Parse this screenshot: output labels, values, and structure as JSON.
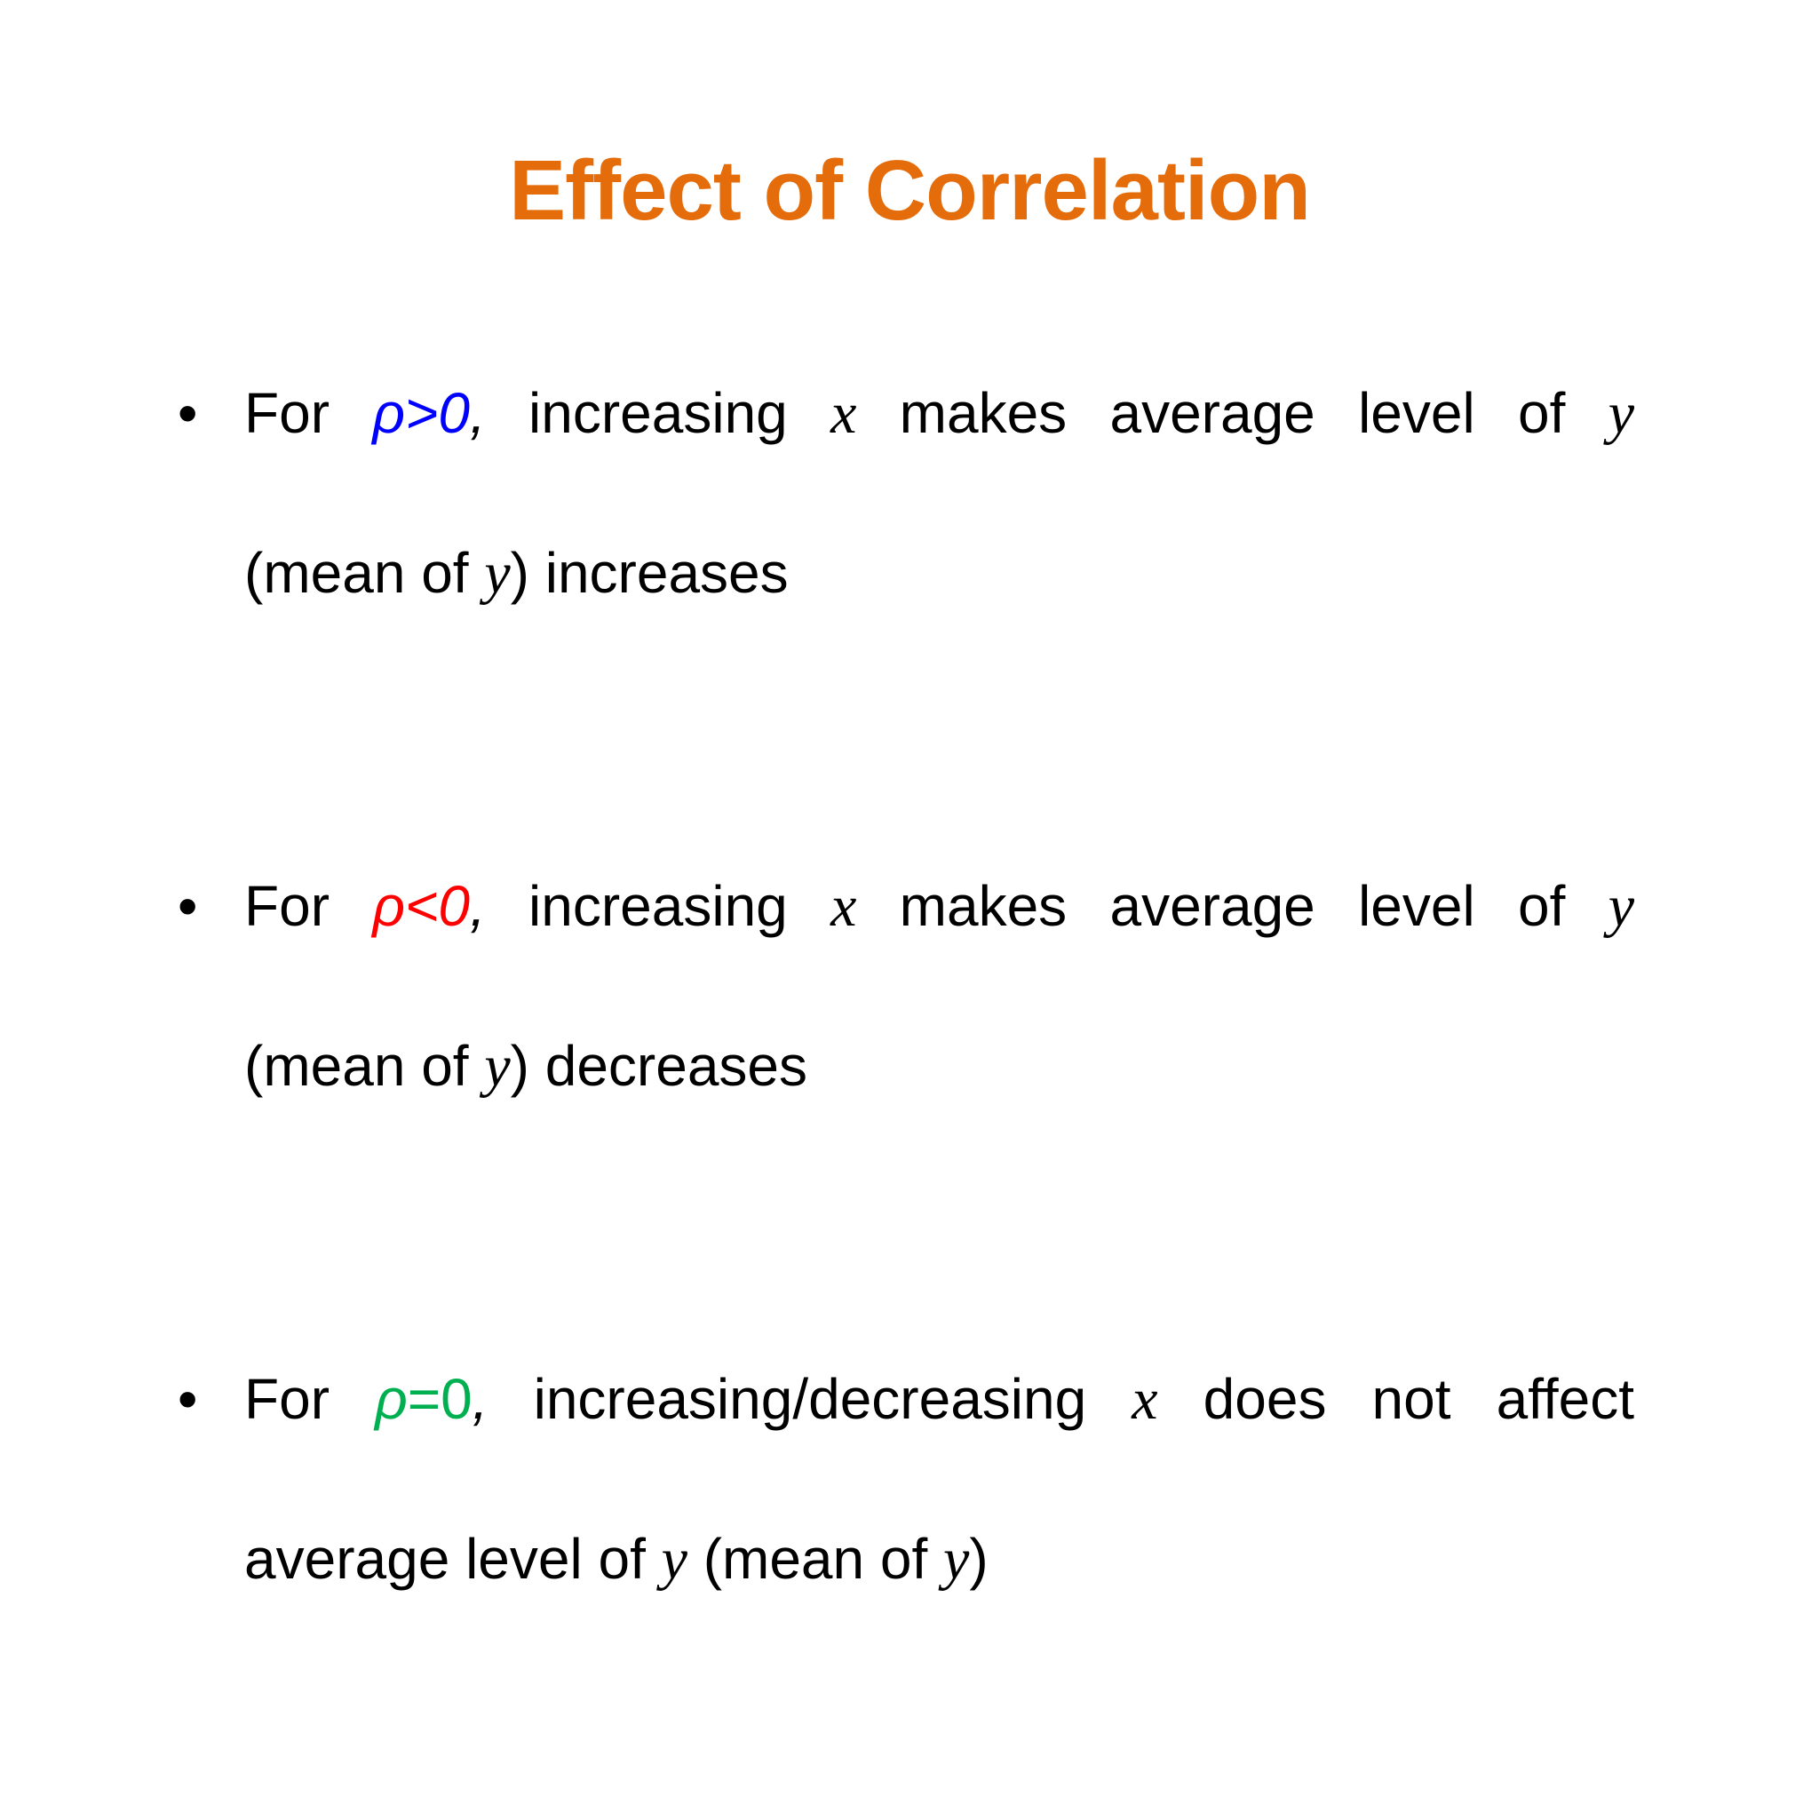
{
  "title": "Effect of Correlation",
  "colors": {
    "title": "#e46c0a",
    "positive": "#0000ff",
    "negative": "#ff0000",
    "zero": "#00b050"
  },
  "bullets": [
    {
      "marker": "•",
      "line1": [
        "For",
        "ρ>0,",
        "increasing",
        "x",
        "makes",
        "average",
        "level",
        "of",
        "y"
      ],
      "line2": {
        "pre": "(mean of ",
        "var": "y",
        "post": ") increases"
      }
    },
    {
      "marker": "•",
      "line1": [
        "For",
        "ρ<0,",
        "increasing",
        "x",
        "makes",
        "average",
        "level",
        "of",
        "y"
      ],
      "line2": {
        "pre": "(mean of ",
        "var": "y",
        "post": ") decreases"
      }
    },
    {
      "marker": "•",
      "line1": [
        "For",
        "ρ=0,",
        "increasing/decreasing",
        "x",
        "does",
        "not",
        "affect"
      ],
      "line2": {
        "pre": "average level of ",
        "var": "y",
        "mid": " (mean of ",
        "var2": "y",
        "post": ")"
      }
    }
  ],
  "conditions": {
    "positive": "ρ>0",
    "negative": "ρ<0",
    "zero": "ρ=0"
  }
}
